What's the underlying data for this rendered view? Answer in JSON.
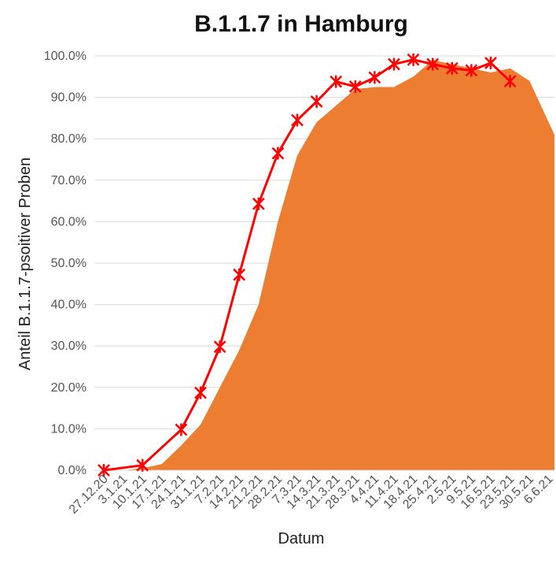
{
  "chart_data": {
    "type": "line",
    "title": "B.1.1.7 in Hamburg",
    "xlabel": "Datum",
    "ylabel": "Anteil B.1.1.7-psoitiver Proben",
    "ylim": [
      0,
      100
    ],
    "ytick_labels": [
      "0.0%",
      "10.0%",
      "20.0%",
      "30.0%",
      "40.0%",
      "50.0%",
      "60.0%",
      "70.0%",
      "80.0%",
      "90.0%",
      "100.0%"
    ],
    "categories": [
      "27.12.20",
      "3.1.21",
      "10.1.21",
      "17.1.21",
      "24.1.21",
      "31.1.21",
      "7.2.21",
      "14.2.21",
      "21.2.21",
      "28.2.21",
      "7.3.21",
      "14.3.21",
      "21.3.21",
      "28.3.21",
      "4.4.21",
      "11.4.21",
      "18.4.21",
      "25.4.21",
      "2.5.21",
      "9.5.21",
      "16.5.21",
      "23.5.21",
      "30.5.21",
      "6.6.21"
    ],
    "grid": true,
    "colors": {
      "area": "#ED7D31",
      "line": "#FF0000",
      "grid": "#D9D9D9"
    },
    "series": [
      {
        "type": "area",
        "values": [
          0,
          0,
          0.5,
          1.5,
          6,
          11,
          20,
          29,
          40,
          60,
          76,
          84,
          88,
          92,
          92.5,
          92.5,
          95,
          99,
          98,
          97,
          96,
          97,
          94,
          81
        ]
      },
      {
        "type": "line",
        "marker": "asterisk",
        "values": [
          0,
          null,
          1.2,
          null,
          9.8,
          18.7,
          29.8,
          47.2,
          64.3,
          76.5,
          84.5,
          89,
          93.8,
          92.6,
          94.8,
          98,
          99.1,
          98,
          97,
          96.5,
          98.3,
          93.9,
          null,
          null
        ]
      }
    ]
  }
}
